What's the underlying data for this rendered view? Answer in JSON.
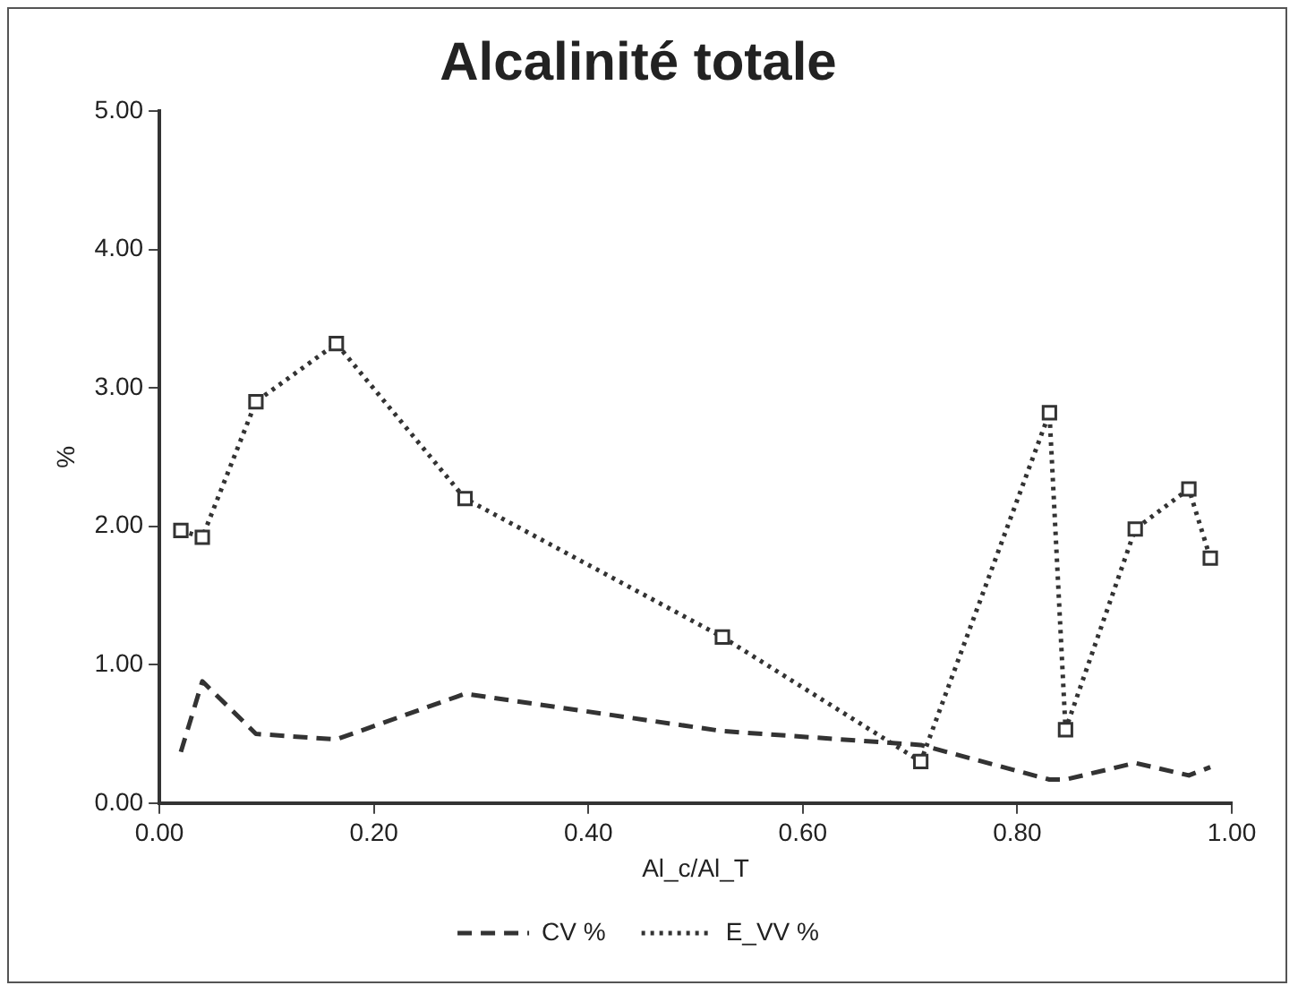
{
  "chart_data": {
    "type": "line",
    "title": "Alcalinité totale",
    "xlabel": "Al_c/Al_T",
    "ylabel": "%",
    "x": [
      0.02,
      0.04,
      0.09,
      0.165,
      0.285,
      0.525,
      0.71,
      0.83,
      0.845,
      0.91,
      0.96,
      0.98
    ],
    "series": [
      {
        "name": "CV %",
        "color": "#333333",
        "line_style": "dashed",
        "marker": "none",
        "values": [
          0.37,
          0.88,
          0.5,
          0.46,
          0.79,
          0.52,
          0.42,
          0.17,
          0.17,
          0.29,
          0.2,
          0.26
        ]
      },
      {
        "name": "E_VV %",
        "color": "#333333",
        "line_style": "dotted",
        "marker": "square",
        "values": [
          1.97,
          1.92,
          2.9,
          3.32,
          2.2,
          1.2,
          0.3,
          2.82,
          0.53,
          1.98,
          2.27,
          1.77
        ]
      }
    ],
    "xlim": [
      0,
      1
    ],
    "xticks": [
      {
        "value": 0,
        "label": "0.00"
      },
      {
        "value": 0.2,
        "label": "0.20"
      },
      {
        "value": 0.4,
        "label": "0.40"
      },
      {
        "value": 0.6,
        "label": "0.60"
      },
      {
        "value": 0.8,
        "label": "0.80"
      },
      {
        "value": 1,
        "label": "1.00"
      }
    ],
    "ylim": [
      0,
      5
    ],
    "yticks": [
      {
        "value": 0,
        "label": "0.00"
      },
      {
        "value": 1,
        "label": "1.00"
      },
      {
        "value": 2,
        "label": "2.00"
      },
      {
        "value": 3,
        "label": "3.00"
      },
      {
        "value": 4,
        "label": "4.00"
      },
      {
        "value": 5,
        "label": "5.00"
      }
    ],
    "grid": false,
    "legend": "bottom"
  }
}
